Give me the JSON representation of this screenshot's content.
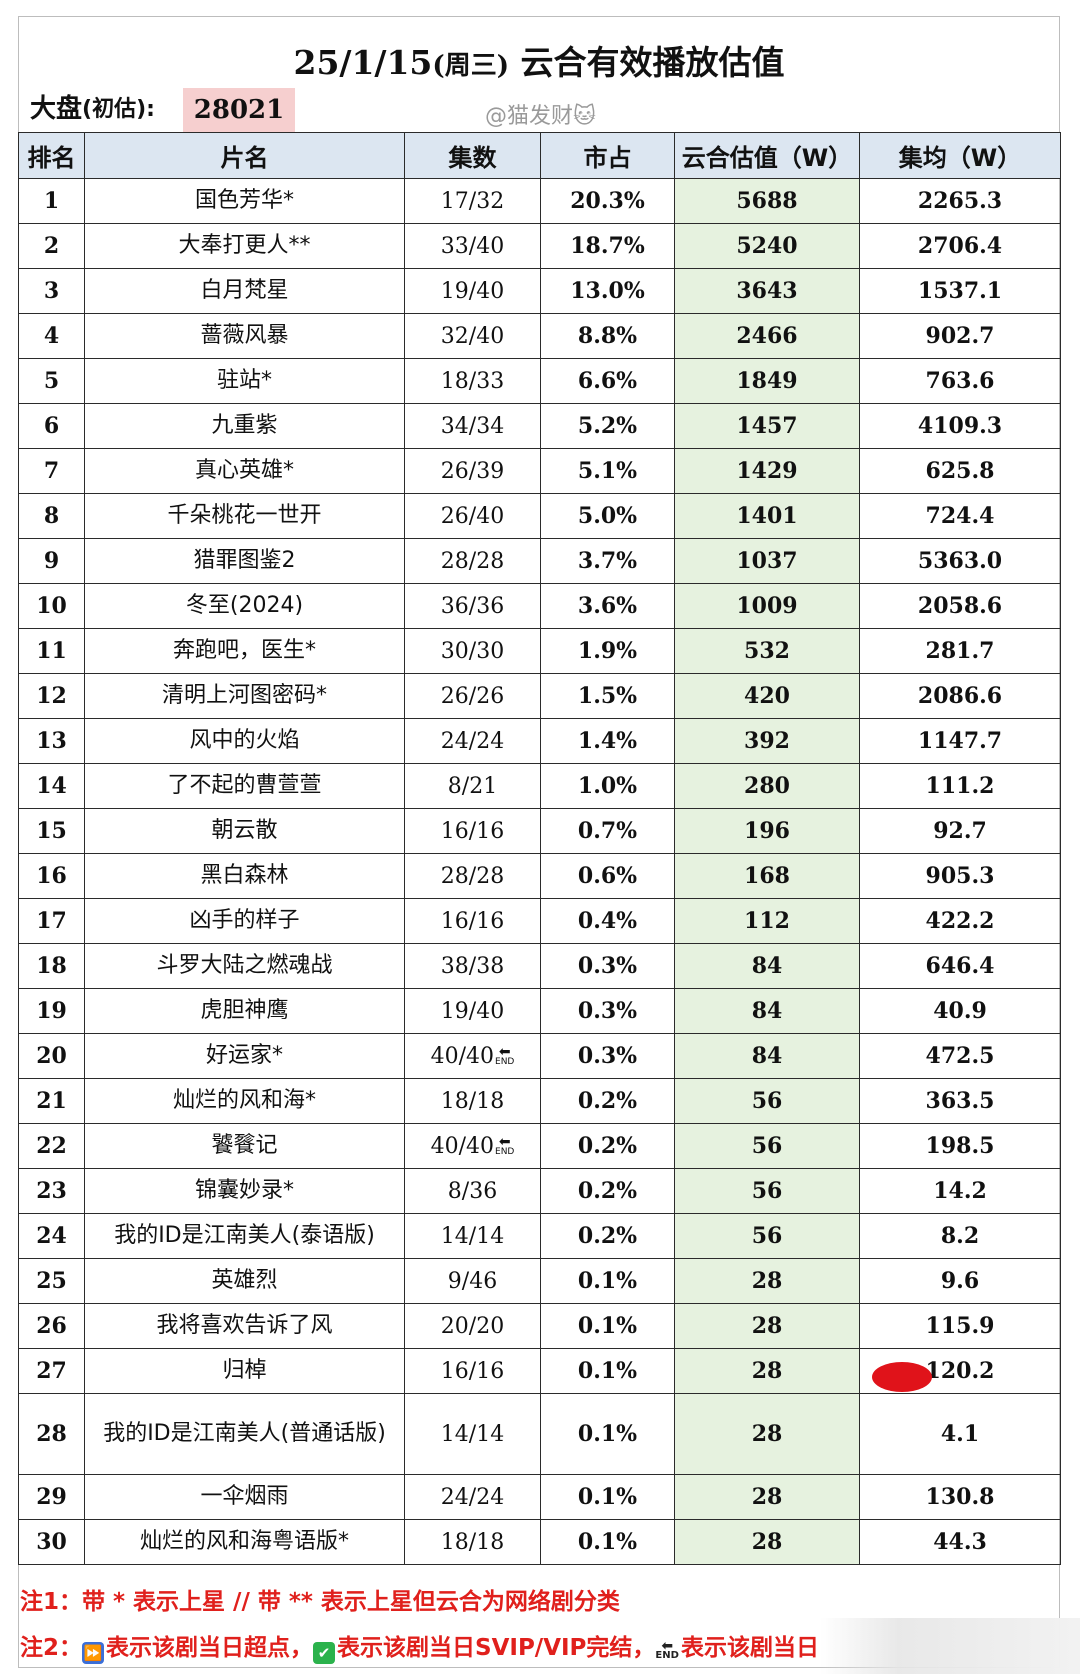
{
  "header": {
    "title_main": "25/1/15",
    "title_dow": "(周三)",
    "title_rest": "云合有效播放估值",
    "dapan_label": "大盘",
    "dapan_paren": "(初估):",
    "dapan_value": "28021",
    "watermark": "@猫发财🐱"
  },
  "table": {
    "headers": [
      "排名",
      "片名",
      "集数",
      "市占",
      "云合估值（W）",
      "集均（W）"
    ],
    "rows": [
      {
        "rank": "1",
        "name": "国色芳华*",
        "eps": "17/32",
        "share": "20.3%",
        "est": "5688",
        "avg": "2265.3"
      },
      {
        "rank": "2",
        "name": "大奉打更人**",
        "eps": "33/40",
        "share": "18.7%",
        "est": "5240",
        "avg": "2706.4"
      },
      {
        "rank": "3",
        "name": "白月梵星",
        "eps": "19/40",
        "share": "13.0%",
        "est": "3643",
        "avg": "1537.1"
      },
      {
        "rank": "4",
        "name": "蔷薇风暴",
        "eps": "32/40",
        "share": "8.8%",
        "est": "2466",
        "avg": "902.7"
      },
      {
        "rank": "5",
        "name": "驻站*",
        "eps": "18/33",
        "share": "6.6%",
        "est": "1849",
        "avg": "763.6"
      },
      {
        "rank": "6",
        "name": "九重紫",
        "eps": "34/34",
        "share": "5.2%",
        "est": "1457",
        "avg": "4109.3"
      },
      {
        "rank": "7",
        "name": "真心英雄*",
        "eps": "26/39",
        "share": "5.1%",
        "est": "1429",
        "avg": "625.8"
      },
      {
        "rank": "8",
        "name": "千朵桃花一世开",
        "eps": "26/40",
        "share": "5.0%",
        "est": "1401",
        "avg": "724.4"
      },
      {
        "rank": "9",
        "name": "猎罪图鉴2",
        "eps": "28/28",
        "share": "3.7%",
        "est": "1037",
        "avg": "5363.0"
      },
      {
        "rank": "10",
        "name": "冬至(2024)",
        "eps": "36/36",
        "share": "3.6%",
        "est": "1009",
        "avg": "2058.6"
      },
      {
        "rank": "11",
        "name": "奔跑吧，医生*",
        "eps": "30/30",
        "share": "1.9%",
        "est": "532",
        "avg": "281.7"
      },
      {
        "rank": "12",
        "name": "清明上河图密码*",
        "eps": "26/26",
        "share": "1.5%",
        "est": "420",
        "avg": "2086.6"
      },
      {
        "rank": "13",
        "name": "风中的火焰",
        "eps": "24/24",
        "share": "1.4%",
        "est": "392",
        "avg": "1147.7"
      },
      {
        "rank": "14",
        "name": "了不起的曹萱萱",
        "eps": "8/21",
        "share": "1.0%",
        "est": "280",
        "avg": "111.2"
      },
      {
        "rank": "15",
        "name": "朝云散",
        "eps": "16/16",
        "share": "0.7%",
        "est": "196",
        "avg": "92.7"
      },
      {
        "rank": "16",
        "name": "黑白森林",
        "eps": "28/28",
        "share": "0.6%",
        "est": "168",
        "avg": "905.3"
      },
      {
        "rank": "17",
        "name": "凶手的样子",
        "eps": "16/16",
        "share": "0.4%",
        "est": "112",
        "avg": "422.2"
      },
      {
        "rank": "18",
        "name": "斗罗大陆之燃魂战",
        "eps": "38/38",
        "share": "0.3%",
        "est": "84",
        "avg": "646.4"
      },
      {
        "rank": "19",
        "name": "虎胆神鹰",
        "eps": "19/40",
        "share": "0.3%",
        "est": "84",
        "avg": "40.9"
      },
      {
        "rank": "20",
        "name": "好运家*",
        "eps": "40/40",
        "share": "0.3%",
        "est": "84",
        "avg": "472.5",
        "end": true
      },
      {
        "rank": "21",
        "name": "灿烂的风和海*",
        "eps": "18/18",
        "share": "0.2%",
        "est": "56",
        "avg": "363.5"
      },
      {
        "rank": "22",
        "name": "饕餮记",
        "eps": "40/40",
        "share": "0.2%",
        "est": "56",
        "avg": "198.5",
        "end": true
      },
      {
        "rank": "23",
        "name": "锦囊妙录*",
        "eps": "8/36",
        "share": "0.2%",
        "est": "56",
        "avg": "14.2"
      },
      {
        "rank": "24",
        "name": "我的ID是江南美人(泰语版)",
        "eps": "14/14",
        "share": "0.2%",
        "est": "56",
        "avg": "8.2"
      },
      {
        "rank": "25",
        "name": "英雄烈",
        "eps": "9/46",
        "share": "0.1%",
        "est": "28",
        "avg": "9.6"
      },
      {
        "rank": "26",
        "name": "我将喜欢告诉了风",
        "eps": "20/20",
        "share": "0.1%",
        "est": "28",
        "avg": "115.9"
      },
      {
        "rank": "27",
        "name": "归棹",
        "eps": "16/16",
        "share": "0.1%",
        "est": "28",
        "avg": "120.2"
      },
      {
        "rank": "28",
        "name": "我的ID是江南美人(普通话版)",
        "eps": "14/14",
        "share": "0.1%",
        "est": "28",
        "avg": "4.1",
        "tall": true
      },
      {
        "rank": "29",
        "name": "一伞烟雨",
        "eps": "24/24",
        "share": "0.1%",
        "est": "28",
        "avg": "130.8"
      },
      {
        "rank": "30",
        "name": "灿烂的风和海粤语版*",
        "eps": "18/18",
        "share": "0.1%",
        "est": "28",
        "avg": "44.3"
      }
    ],
    "end_icon_text": "END"
  },
  "notes": {
    "note1": "注1：带 * 表示上星 // 带 ** 表示上星但云合为网络剧分类",
    "note2_prefix": "注2：",
    "note2_a": "表示该剧当日超点，",
    "note2_b": "表示该剧当日SVIP/VIP完结，",
    "note2_c": "表示该剧当日",
    "note2_icon_a": "⏩",
    "note2_icon_b": "✔",
    "note2_icon_c": "END"
  },
  "colors": {
    "header_bg": "#dce6f1",
    "estimate_col_bg": "#e6f2df",
    "dapan_bg": "#f6cfcf",
    "note_red": "#e0201c"
  }
}
